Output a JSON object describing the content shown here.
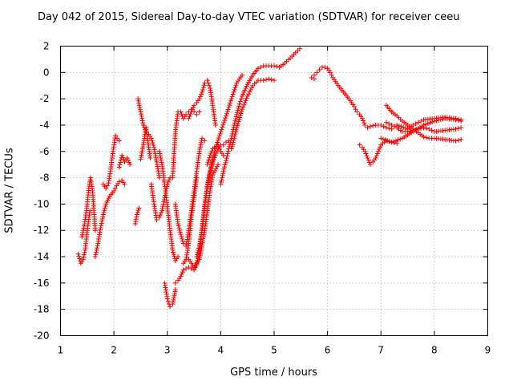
{
  "chart_data": {
    "type": "scatter",
    "title": "Day 042 of 2015, Sidereal Day-to-day VTEC variation (SDTVAR) for receiver ceeu",
    "xlabel": "GPS time / hours",
    "ylabel": "SDTVAR / TECUs",
    "xlim": [
      1,
      9
    ],
    "ylim": [
      -20,
      2
    ],
    "x_ticks": [
      "1",
      "2",
      "3",
      "4",
      "5",
      "6",
      "7",
      "8",
      "9"
    ],
    "y_ticks": [
      "2",
      "0",
      "-2",
      "-4",
      "-6",
      "-8",
      "-10",
      "-12",
      "-14",
      "-16",
      "-18",
      "-20"
    ],
    "grid": true,
    "marker": "+",
    "color": "#ff0000",
    "series": [
      {
        "x": [
          1.33,
          1.38,
          1.42,
          1.46,
          1.5,
          1.55
        ],
        "y": [
          -13.8,
          -14.5,
          -14.2,
          -13.5,
          -12.0,
          -10.5
        ]
      },
      {
        "x": [
          1.4,
          1.45,
          1.5,
          1.53,
          1.56,
          1.6,
          1.63,
          1.65
        ],
        "y": [
          -12.5,
          -11.5,
          -10.0,
          -8.8,
          -8.0,
          -9.0,
          -10.8,
          -12.0
        ]
      },
      {
        "x": [
          1.65,
          1.7,
          1.75,
          1.8,
          1.85,
          1.92,
          2.0,
          2.05,
          2.1,
          2.15,
          2.2
        ],
        "y": [
          -14.0,
          -13.0,
          -11.8,
          -10.8,
          -10.0,
          -9.4,
          -9.0,
          -8.6,
          -8.3,
          -8.2,
          -8.5
        ]
      },
      {
        "x": [
          1.8,
          1.85,
          1.9,
          1.95,
          2.0,
          2.03,
          2.06,
          2.1
        ],
        "y": [
          -8.5,
          -8.8,
          -8.4,
          -7.0,
          -5.5,
          -4.8,
          -5.0,
          -5.2
        ]
      },
      {
        "x": [
          2.1,
          2.15,
          2.2,
          2.25,
          2.3
        ],
        "y": [
          -7.2,
          -6.3,
          -6.8,
          -6.5,
          -7.0
        ]
      },
      {
        "x": [
          2.4,
          2.43,
          2.47
        ],
        "y": [
          -11.5,
          -10.8,
          -10.3
        ]
      },
      {
        "x": [
          2.45,
          2.5,
          2.55,
          2.6,
          2.65,
          2.7,
          2.75,
          2.8,
          2.85
        ],
        "y": [
          -2.0,
          -3.0,
          -4.0,
          -4.5,
          -4.7,
          -5.0,
          -5.7,
          -6.8,
          -8.0
        ]
      },
      {
        "x": [
          2.5,
          2.55,
          2.6,
          2.68
        ],
        "y": [
          -6.6,
          -5.5,
          -4.2,
          -6.5
        ]
      },
      {
        "x": [
          2.7,
          2.75,
          2.8,
          2.85,
          2.9,
          2.95,
          3.0,
          3.05
        ],
        "y": [
          -8.5,
          -10.0,
          -11.2,
          -11.0,
          -10.5,
          -9.5,
          -8.5,
          -8.0
        ]
      },
      {
        "x": [
          2.85,
          2.9,
          2.95,
          3.0,
          3.05,
          3.1,
          3.15,
          3.2
        ],
        "y": [
          -6.0,
          -7.0,
          -8.5,
          -10.2,
          -12.0,
          -13.5,
          -14.3,
          -14.0
        ]
      },
      {
        "x": [
          2.95,
          3.0,
          3.05,
          3.1,
          3.15
        ],
        "y": [
          -16.0,
          -17.2,
          -17.8,
          -17.6,
          -16.5
        ]
      },
      {
        "x": [
          3.15,
          3.2,
          3.25,
          3.3,
          3.4,
          3.5,
          3.55
        ],
        "y": [
          -16.0,
          -15.8,
          -15.5,
          -15.0,
          -14.8,
          -15.0,
          -14.5
        ]
      },
      {
        "x": [
          3.1,
          3.12,
          3.15,
          3.2,
          3.25,
          3.3,
          3.35,
          3.4,
          3.45,
          3.5,
          3.55,
          3.6
        ],
        "y": [
          -8.0,
          -6.5,
          -4.5,
          -3.0,
          -3.0,
          -3.5,
          -3.2,
          -3.0,
          -2.8,
          -3.0,
          -3.2,
          -3.0
        ]
      },
      {
        "x": [
          3.15,
          3.2,
          3.25,
          3.3,
          3.35,
          3.4,
          3.45,
          3.5,
          3.55,
          3.6,
          3.65,
          3.7
        ],
        "y": [
          -10.0,
          -11.5,
          -12.3,
          -13.0,
          -13.2,
          -12.0,
          -10.5,
          -9.0,
          -7.5,
          -6.0,
          -5.0,
          -5.2
        ]
      },
      {
        "x": [
          3.3,
          3.35,
          3.4,
          3.45,
          3.5,
          3.55
        ],
        "y": [
          -14.5,
          -14.2,
          -13.0,
          -11.0,
          -9.5,
          -8.0
        ]
      },
      {
        "x": [
          3.4,
          3.45,
          3.5,
          3.55,
          3.6,
          3.65,
          3.7,
          3.75,
          3.8,
          3.85,
          3.9
        ],
        "y": [
          -3.5,
          -3.0,
          -2.5,
          -2.3,
          -2.0,
          -1.5,
          -0.8,
          -0.6,
          -1.2,
          -2.5,
          -4.0
        ]
      },
      {
        "x": [
          3.5,
          3.55,
          3.6,
          3.65,
          3.7,
          3.75,
          3.8,
          3.9,
          4.0,
          4.1,
          4.2,
          4.3,
          4.4
        ],
        "y": [
          -15.0,
          -14.6,
          -13.5,
          -11.8,
          -10.0,
          -8.5,
          -7.5,
          -5.8,
          -4.5,
          -3.3,
          -2.0,
          -0.8,
          -0.2
        ]
      },
      {
        "x": [
          3.55,
          3.6,
          3.65,
          3.7,
          3.75,
          3.8,
          3.85,
          3.9,
          3.95,
          4.0,
          4.05,
          4.1,
          4.15
        ],
        "y": [
          -14.0,
          -13.2,
          -12.0,
          -10.2,
          -8.7,
          -7.6,
          -6.8,
          -6.3,
          -5.8,
          -5.5,
          -5.5,
          -5.3,
          -5.2
        ]
      },
      {
        "x": [
          3.4,
          3.5,
          3.6,
          3.7,
          3.75,
          3.8,
          3.85,
          3.95
        ],
        "y": [
          -14.2,
          -14.8,
          -14.2,
          -12.0,
          -10.5,
          -9.0,
          -7.8,
          -7.0
        ]
      },
      {
        "x": [
          3.75,
          3.8,
          3.85,
          3.95,
          4.0,
          4.05
        ],
        "y": [
          -7.0,
          -6.3,
          -5.8,
          -5.5,
          -6.0,
          -6.3
        ]
      },
      {
        "x": [
          4.0,
          4.05,
          4.1,
          4.15,
          4.2,
          4.25,
          4.3,
          4.35,
          4.4,
          4.5,
          4.6,
          4.7,
          4.8,
          4.9,
          5.0,
          5.1,
          5.2,
          5.3,
          5.4,
          5.48
        ],
        "y": [
          -8.5,
          -7.5,
          -6.7,
          -5.8,
          -5.0,
          -4.0,
          -3.2,
          -2.4,
          -1.8,
          -0.9,
          -0.2,
          0.3,
          0.5,
          0.5,
          0.5,
          0.4,
          0.7,
          1.1,
          1.5,
          1.8
        ]
      },
      {
        "x": [
          4.2,
          4.3,
          4.4,
          4.5,
          4.6,
          4.7,
          4.8,
          4.9,
          5.0
        ],
        "y": [
          -5.8,
          -4.2,
          -2.8,
          -1.8,
          -1.0,
          -0.6,
          -0.6,
          -0.5,
          -0.6
        ]
      },
      {
        "x": [
          5.7,
          5.75
        ],
        "y": [
          -0.4,
          -0.5
        ]
      },
      {
        "x": [
          5.75,
          5.8,
          5.85,
          5.9,
          5.95,
          6.0,
          6.05,
          6.1,
          6.2,
          6.3,
          6.4,
          6.5,
          6.55,
          6.6,
          6.65,
          6.7,
          6.75,
          6.8,
          6.9,
          7.0,
          7.1,
          7.2
        ],
        "y": [
          -0.2,
          0.0,
          0.2,
          0.4,
          0.4,
          0.3,
          0.0,
          -0.4,
          -1.0,
          -1.5,
          -2.0,
          -2.6,
          -3.0,
          -3.2,
          -3.5,
          -4.0,
          -4.2,
          -4.1,
          -4.0,
          -4.0,
          -4.2,
          -4.3
        ]
      },
      {
        "x": [
          6.6,
          6.65,
          6.7,
          6.75,
          6.8,
          6.85,
          6.9,
          6.95,
          7.0,
          7.1,
          7.2,
          7.3
        ],
        "y": [
          -5.5,
          -5.7,
          -6.0,
          -6.5,
          -7.0,
          -6.8,
          -6.5,
          -6.0,
          -5.5,
          -5.2,
          -5.3,
          -5.4
        ]
      },
      {
        "x": [
          7.1,
          7.2,
          7.3,
          7.4,
          7.5,
          7.6,
          7.7,
          7.8,
          7.9,
          8.0,
          8.2,
          8.4,
          8.5
        ],
        "y": [
          -2.5,
          -3.0,
          -3.3,
          -3.7,
          -4.0,
          -4.3,
          -4.6,
          -4.9,
          -5.0,
          -5.0,
          -5.1,
          -5.2,
          -5.1
        ]
      },
      {
        "x": [
          7.1,
          7.2,
          7.3,
          7.4,
          7.5,
          7.6,
          7.7,
          7.8,
          7.9,
          8.0,
          8.2,
          8.4,
          8.5
        ],
        "y": [
          -3.8,
          -4.0,
          -4.2,
          -4.5,
          -4.5,
          -4.4,
          -4.3,
          -4.2,
          -4.3,
          -4.5,
          -4.4,
          -4.3,
          -4.2
        ]
      },
      {
        "x": [
          7.0,
          7.2,
          7.4,
          7.6,
          7.8,
          8.0,
          8.2,
          8.4,
          8.5
        ],
        "y": [
          -5.0,
          -5.3,
          -5.0,
          -4.5,
          -4.0,
          -3.7,
          -3.5,
          -3.6,
          -3.7
        ]
      },
      {
        "x": [
          7.3,
          7.5,
          7.6,
          7.7,
          7.8,
          8.0,
          8.2,
          8.4,
          8.5
        ],
        "y": [
          -4.0,
          -4.3,
          -4.0,
          -3.8,
          -3.6,
          -3.5,
          -3.4,
          -3.5,
          -3.6
        ]
      }
    ]
  }
}
